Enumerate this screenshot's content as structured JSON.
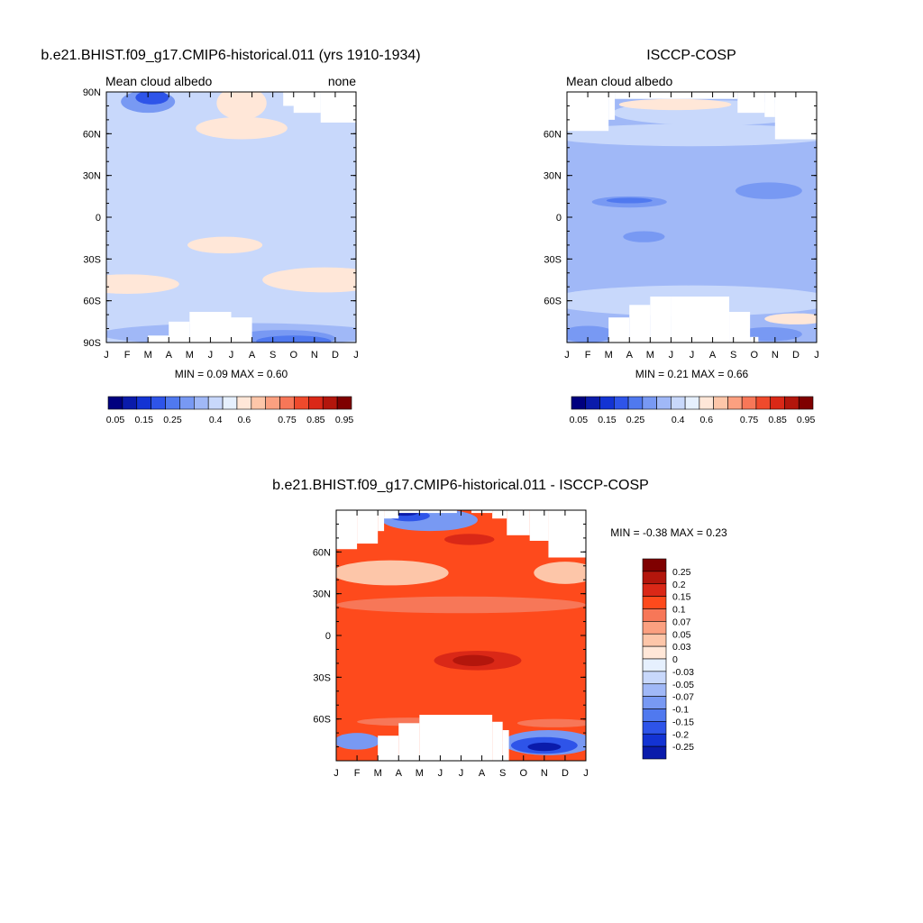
{
  "chart_data": [
    {
      "type": "heatmap",
      "title": "b.e21.BHIST.f09_g17.CMIP6-historical.011 (yrs 1910-1934)",
      "left_label": "Mean cloud albedo",
      "right_label": "none",
      "stats": "MIN =   0.09 MAX =   0.60",
      "x_ticks": [
        "J",
        "F",
        "M",
        "A",
        "M",
        "J",
        "J",
        "A",
        "S",
        "O",
        "N",
        "D",
        "J"
      ],
      "y_ticks": [
        "90N",
        "60N",
        "30N",
        "0",
        "30S",
        "60S",
        "90S"
      ],
      "y_tick_values": [
        90,
        60,
        30,
        0,
        -30,
        -60,
        -90
      ],
      "ylim": [
        -90,
        90
      ],
      "xlim": [
        0,
        12
      ],
      "colorbar_labels": [
        "0.05",
        "0.15",
        "0.25",
        "0.4",
        "0.6",
        "0.75",
        "0.85",
        "0.95"
      ],
      "colorbar_levels": [
        0.05,
        0.1,
        0.15,
        0.2,
        0.25,
        0.3,
        0.35,
        0.4,
        0.5,
        0.6,
        0.65,
        0.7,
        0.75,
        0.8,
        0.85,
        0.9,
        0.95
      ],
      "colorbar_colors": [
        "#00007f",
        "#0a1bab",
        "#1333d3",
        "#2e54e9",
        "#5079ef",
        "#7899f3",
        "#a0b8f7",
        "#c8d8fb",
        "#e6f0fe",
        "#ffe7d8",
        "#fdc6a9",
        "#fba080",
        "#f77758",
        "#ef4a2c",
        "#da2817",
        "#b3160c",
        "#7f0000"
      ],
      "background_level": 0.45,
      "missing": [
        {
          "x0": 8.5,
          "x1": 9.5,
          "y0": 80,
          "y1": 90
        },
        {
          "x0": 9.0,
          "x1": 10.3,
          "y0": 75,
          "y1": 90
        },
        {
          "x0": 10.3,
          "x1": 12.0,
          "y0": 68,
          "y1": 90
        },
        {
          "x0": 2.0,
          "x1": 3.0,
          "y0": -90,
          "y1": -85
        },
        {
          "x0": 3.0,
          "x1": 4.0,
          "y0": -90,
          "y1": -75
        },
        {
          "x0": 4.0,
          "x1": 6.0,
          "y0": -90,
          "y1": -68
        },
        {
          "x0": 6.0,
          "x1": 7.0,
          "y0": -90,
          "y1": -72
        }
      ],
      "regions": [
        {
          "level": 0.4,
          "cx": 6.0,
          "cy": 14,
          "rx": 7.2,
          "ry": 9
        },
        {
          "level": 0.4,
          "cx": 6.0,
          "cy": 80,
          "rx": 7.2,
          "ry": 20
        },
        {
          "level": 0.6,
          "cx": 6.5,
          "cy": 64,
          "rx": 2.2,
          "ry": 8
        },
        {
          "level": 0.6,
          "cx": 6.5,
          "cy": 82,
          "rx": 1.2,
          "ry": 12
        },
        {
          "level": 0.6,
          "cx": 5.7,
          "cy": -20,
          "rx": 1.8,
          "ry": 6
        },
        {
          "level": 0.6,
          "cx": 1.0,
          "cy": -48,
          "rx": 2.5,
          "ry": 7
        },
        {
          "level": 0.6,
          "cx": 10.5,
          "cy": -45,
          "rx": 3.0,
          "ry": 9
        },
        {
          "level": 0.4,
          "cx": 6.0,
          "cy": -75,
          "rx": 7.5,
          "ry": 14
        },
        {
          "level": 0.35,
          "cx": 6.5,
          "cy": -84,
          "rx": 6.8,
          "ry": 8
        },
        {
          "level": 0.3,
          "cx": 8.5,
          "cy": -87,
          "rx": 2.5,
          "ry": 6
        },
        {
          "level": 0.25,
          "cx": 9.0,
          "cy": -89,
          "rx": 1.8,
          "ry": 4
        },
        {
          "level": 0.3,
          "cx": 2.0,
          "cy": 83,
          "rx": 1.3,
          "ry": 8
        },
        {
          "level": 0.2,
          "cx": 2.2,
          "cy": 86,
          "rx": 0.8,
          "ry": 5
        }
      ]
    },
    {
      "type": "heatmap",
      "title": "ISCCP-COSP",
      "left_label": "Mean cloud albedo",
      "right_label": "",
      "stats": "MIN =   0.21 MAX =   0.66",
      "x_ticks": [
        "J",
        "F",
        "M",
        "A",
        "M",
        "J",
        "J",
        "A",
        "S",
        "O",
        "N",
        "D",
        "J"
      ],
      "y_ticks": [
        "60N",
        "30N",
        "0",
        "30S",
        "60S"
      ],
      "y_tick_values": [
        60,
        30,
        0,
        -30,
        -60
      ],
      "ylim": [
        -90,
        90
      ],
      "xlim": [
        0,
        12
      ],
      "colorbar_labels": [
        "0.05",
        "0.15",
        "0.25",
        "0.4",
        "0.6",
        "0.75",
        "0.85",
        "0.95"
      ],
      "colorbar_levels": [
        0.05,
        0.1,
        0.15,
        0.2,
        0.25,
        0.3,
        0.35,
        0.4,
        0.5,
        0.6,
        0.65,
        0.7,
        0.75,
        0.8,
        0.85,
        0.9,
        0.95
      ],
      "colorbar_colors": [
        "#00007f",
        "#0a1bab",
        "#1333d3",
        "#2e54e9",
        "#5079ef",
        "#7899f3",
        "#a0b8f7",
        "#c8d8fb",
        "#e6f0fe",
        "#ffe7d8",
        "#fdc6a9",
        "#fba080",
        "#f77758",
        "#ef4a2c",
        "#da2817",
        "#b3160c",
        "#7f0000"
      ],
      "background_level": 0.35,
      "missing": [
        {
          "x0": 0,
          "x1": 2.0,
          "y0": 62,
          "y1": 90
        },
        {
          "x0": 2.0,
          "x1": 2.3,
          "y0": 70,
          "y1": 90
        },
        {
          "x0": 2.3,
          "x1": 8.2,
          "y0": 85,
          "y1": 90
        },
        {
          "x0": 8.2,
          "x1": 9.5,
          "y0": 75,
          "y1": 90
        },
        {
          "x0": 9.5,
          "x1": 10.0,
          "y0": 72,
          "y1": 90
        },
        {
          "x0": 10.0,
          "x1": 12.0,
          "y0": 56,
          "y1": 90
        },
        {
          "x0": 2.0,
          "x1": 3.0,
          "y0": -90,
          "y1": -88
        },
        {
          "x0": 2.0,
          "x1": 3.0,
          "y0": -90,
          "y1": -86
        },
        {
          "x0": 2.0,
          "x1": 3.0,
          "y0": -90,
          "y1": -72
        },
        {
          "x0": 3.0,
          "x1": 4.0,
          "y0": -90,
          "y1": -63
        },
        {
          "x0": 4.0,
          "x1": 5.0,
          "y0": -90,
          "y1": -57
        },
        {
          "x0": 5.0,
          "x1": 7.8,
          "y0": -90,
          "y1": -57
        },
        {
          "x0": 7.8,
          "x1": 8.8,
          "y0": -90,
          "y1": -68
        },
        {
          "x0": 8.8,
          "x1": 9.2,
          "y0": -90,
          "y1": -86
        }
      ],
      "regions": [
        {
          "level": 0.4,
          "cx": 6.0,
          "cy": 59,
          "rx": 7.0,
          "ry": 8
        },
        {
          "level": 0.4,
          "cx": 7.0,
          "cy": 75,
          "rx": 4.8,
          "ry": 9
        },
        {
          "level": 0.4,
          "cx": 6.0,
          "cy": -60,
          "rx": 7.0,
          "ry": 11
        },
        {
          "level": 0.6,
          "cx": 5.2,
          "cy": 81,
          "rx": 2.7,
          "ry": 4
        },
        {
          "level": 0.6,
          "cx": 11.0,
          "cy": -73,
          "rx": 1.5,
          "ry": 4
        },
        {
          "level": 0.3,
          "cx": 3.0,
          "cy": 11,
          "rx": 1.8,
          "ry": 4
        },
        {
          "level": 0.25,
          "cx": 3.0,
          "cy": 12,
          "rx": 1.1,
          "ry": 2
        },
        {
          "level": 0.3,
          "cx": 3.7,
          "cy": -14,
          "rx": 1.0,
          "ry": 4
        },
        {
          "level": 0.3,
          "cx": 9.7,
          "cy": 19,
          "rx": 1.6,
          "ry": 6
        },
        {
          "level": 0.3,
          "cx": 1.0,
          "cy": -84,
          "rx": 1.3,
          "ry": 6
        },
        {
          "level": 0.3,
          "cx": 9.7,
          "cy": -84,
          "rx": 1.6,
          "ry": 5
        }
      ]
    },
    {
      "type": "heatmap",
      "title": "b.e21.BHIST.f09_g17.CMIP6-historical.011 - ISCCP-COSP",
      "left_label": "",
      "right_label": "",
      "stats": "MIN =  -0.38 MAX =   0.23",
      "x_ticks": [
        "J",
        "F",
        "M",
        "A",
        "M",
        "J",
        "J",
        "A",
        "S",
        "O",
        "N",
        "D",
        "J"
      ],
      "y_ticks": [
        "60N",
        "30N",
        "0",
        "30S",
        "60S"
      ],
      "y_tick_values": [
        60,
        30,
        0,
        -30,
        -60
      ],
      "ylim": [
        -90,
        90
      ],
      "xlim": [
        0,
        12
      ],
      "colorbar_labels": [
        "0.25",
        "0.2",
        "0.15",
        "0.1",
        "0.07",
        "0.05",
        "0.03",
        "0",
        "-0.03",
        "-0.05",
        "-0.07",
        "-0.1",
        "-0.15",
        "-0.2",
        "-0.25"
      ],
      "colorbar_levels": [
        0.25,
        0.2,
        0.15,
        0.1,
        0.07,
        0.05,
        0.03,
        0,
        -0.03,
        -0.05,
        -0.07,
        -0.1,
        -0.15,
        -0.2,
        -0.25
      ],
      "colorbar_colors": [
        "#7f0000",
        "#b3160c",
        "#da2817",
        "#fe4a1c",
        "#f77758",
        "#fba080",
        "#fdc6a9",
        "#ffe7d8",
        "#e6f0fe",
        "#c8d8fb",
        "#a0b8f7",
        "#7899f3",
        "#5079ef",
        "#2e54e9",
        "#1333d3",
        "#0a1bab"
      ],
      "background_level": 0.12,
      "missing": [
        {
          "x0": 0,
          "x1": 1.0,
          "y0": 62,
          "y1": 90
        },
        {
          "x0": 1.0,
          "x1": 2.0,
          "y0": 66,
          "y1": 90
        },
        {
          "x0": 2.0,
          "x1": 2.3,
          "y0": 75,
          "y1": 90
        },
        {
          "x0": 2.3,
          "x1": 3.0,
          "y0": 84,
          "y1": 90
        },
        {
          "x0": 3.0,
          "x1": 5.8,
          "y0": 88,
          "y1": 90
        },
        {
          "x0": 6.5,
          "x1": 7.5,
          "y0": 88,
          "y1": 90
        },
        {
          "x0": 7.5,
          "x1": 8.2,
          "y0": 84,
          "y1": 90
        },
        {
          "x0": 8.2,
          "x1": 9.3,
          "y0": 72,
          "y1": 90
        },
        {
          "x0": 9.3,
          "x1": 10.2,
          "y0": 68,
          "y1": 90
        },
        {
          "x0": 10.2,
          "x1": 12.0,
          "y0": 56,
          "y1": 90
        },
        {
          "x0": 2.0,
          "x1": 3.0,
          "y0": -90,
          "y1": -72
        },
        {
          "x0": 3.0,
          "x1": 4.0,
          "y0": -90,
          "y1": -63
        },
        {
          "x0": 4.0,
          "x1": 7.5,
          "y0": -90,
          "y1": -57
        },
        {
          "x0": 7.5,
          "x1": 8.0,
          "y0": -90,
          "y1": -62
        },
        {
          "x0": 8.0,
          "x1": 8.3,
          "y0": -90,
          "y1": -68
        }
      ],
      "regions": [
        {
          "level": 0.03,
          "cx": 2.6,
          "cy": 45,
          "rx": 2.8,
          "ry": 9
        },
        {
          "level": 0.03,
          "cx": 11.0,
          "cy": 45,
          "rx": 1.5,
          "ry": 8
        },
        {
          "level": 0.05,
          "cx": 5.4,
          "cy": 23,
          "rx": 2.2,
          "ry": 3
        },
        {
          "level": 0.07,
          "cx": 6.0,
          "cy": 22,
          "rx": 6.0,
          "ry": 6
        },
        {
          "level": 0.07,
          "cx": 10.5,
          "cy": -63,
          "rx": 1.8,
          "ry": 3
        },
        {
          "level": 0.07,
          "cx": 3.5,
          "cy": -62,
          "rx": 2.5,
          "ry": 3
        },
        {
          "level": 0.15,
          "cx": 6.4,
          "cy": 69,
          "rx": 1.2,
          "ry": 4
        },
        {
          "level": 0.15,
          "cx": 6.8,
          "cy": -18,
          "rx": 2.1,
          "ry": 7
        },
        {
          "level": 0.2,
          "cx": 6.6,
          "cy": -18,
          "rx": 1.0,
          "ry": 4
        },
        {
          "level": -0.1,
          "cx": 4.5,
          "cy": 83,
          "rx": 2.3,
          "ry": 8
        },
        {
          "level": -0.2,
          "cx": 3.5,
          "cy": 86,
          "rx": 1.0,
          "ry": 4
        },
        {
          "level": -0.3,
          "cx": 3.3,
          "cy": 89,
          "rx": 0.7,
          "ry": 3
        },
        {
          "level": -0.1,
          "cx": 1.0,
          "cy": -76,
          "rx": 1.1,
          "ry": 6
        },
        {
          "level": -0.1,
          "cx": 10.2,
          "cy": -77,
          "rx": 2.2,
          "ry": 9
        },
        {
          "level": -0.2,
          "cx": 10.0,
          "cy": -79,
          "rx": 1.6,
          "ry": 6
        },
        {
          "level": -0.3,
          "cx": 10.0,
          "cy": -80,
          "rx": 0.8,
          "ry": 3
        }
      ]
    }
  ]
}
